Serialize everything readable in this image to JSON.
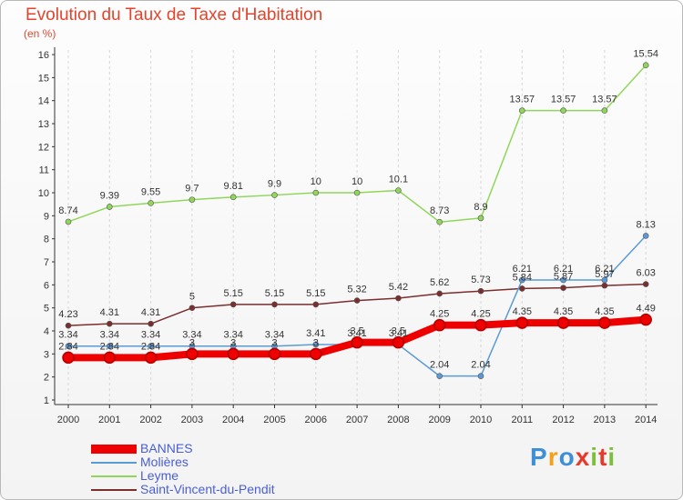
{
  "title": "Evolution du Taux de Taxe d'Habitation",
  "subtitle": "(en %)",
  "brand": "Proxiti",
  "colors": {
    "title": "#e2452d",
    "legend_text": "#4a5fd3",
    "axis": "#333333",
    "grid": "#d8d8d8"
  },
  "chart_data": {
    "type": "line",
    "title": "Evolution du Taux de Taxe d'Habitation",
    "ylabel": "(en %)",
    "xlabel": "",
    "x": [
      "2000",
      "2001",
      "2002",
      "2003",
      "2004",
      "2005",
      "2006",
      "2007",
      "2008",
      "2009",
      "2010",
      "2011",
      "2012",
      "2013",
      "2014"
    ],
    "ylim": [
      1,
      16
    ],
    "yticks": [
      "1",
      "2",
      "3",
      "4",
      "5",
      "6",
      "7",
      "8",
      "9",
      "10",
      "11",
      "12",
      "13",
      "14",
      "15",
      "16"
    ],
    "grid": "vertical dashed",
    "legend_position": "bottom-left",
    "series": [
      {
        "name": "BANNES",
        "color": "#ee0000",
        "emphasis": "thick",
        "values": [
          2.84,
          2.84,
          2.84,
          3.0,
          3.0,
          3.0,
          3.0,
          3.5,
          3.5,
          4.25,
          4.25,
          4.35,
          4.35,
          4.35,
          4.49
        ],
        "labels": [
          "2.84",
          "2.84",
          "2.84",
          "3",
          "3",
          "3",
          "3",
          "3.5",
          "3.5",
          "4.25",
          "4.25",
          "4.35",
          "4.35",
          "4.35",
          "4.49"
        ]
      },
      {
        "name": "Molières",
        "color": "#5b9bd5",
        "values": [
          3.34,
          3.34,
          3.34,
          3.34,
          3.34,
          3.34,
          3.41,
          3.41,
          3.41,
          2.04,
          2.04,
          6.21,
          6.21,
          6.21,
          8.13
        ],
        "labels": [
          "3.34",
          "3.34",
          "3.34",
          "3.34",
          "3.34",
          "3.34",
          "3.41",
          "3.41",
          "3.41",
          "2.04",
          "2.04",
          "6.21",
          "6.21",
          "6.21",
          "8.13"
        ]
      },
      {
        "name": "Leyme",
        "color": "#90d65a",
        "values": [
          8.74,
          9.39,
          9.55,
          9.7,
          9.81,
          9.9,
          10,
          10,
          10.1,
          8.73,
          8.9,
          13.57,
          13.57,
          13.57,
          15.54
        ],
        "labels": [
          "8.74",
          "9.39",
          "9.55",
          "9.7",
          "9.81",
          "9.9",
          "10",
          "10",
          "10.1",
          "8.73",
          "8.9",
          "13.57",
          "13.57",
          "13.57",
          "15.54"
        ]
      },
      {
        "name": "Saint-Vincent-du-Pendit",
        "color": "#7a2e2e",
        "values": [
          4.23,
          4.31,
          4.31,
          5,
          5.15,
          5.15,
          5.15,
          5.32,
          5.42,
          5.62,
          5.73,
          5.84,
          5.87,
          5.97,
          6.03
        ],
        "labels": [
          "4.23",
          "4.31",
          "4.31",
          "5",
          "5.15",
          "5.15",
          "5.15",
          "5.32",
          "5.42",
          "5.62",
          "5.73",
          "5.84",
          "5.87",
          "5.97",
          "6.03"
        ]
      }
    ]
  }
}
